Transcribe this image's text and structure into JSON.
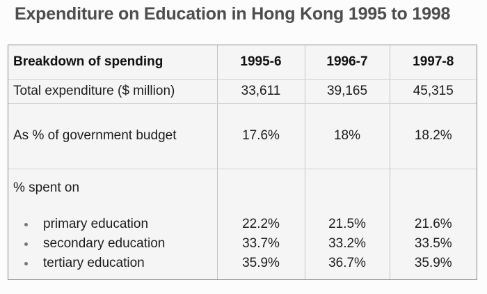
{
  "page": {
    "title": "Expenditure on Education in Hong Kong 1995 to 1998"
  },
  "colors": {
    "title_text": "#4d4d4f",
    "table_text": "#1c1c1c",
    "cell_background": "#f5f5f5",
    "outer_border": "#8a8a8a",
    "inner_grid": "#c3c3c3"
  },
  "chart_data": {
    "type": "table",
    "title": "Expenditure on Education in Hong Kong 1995 to 1998",
    "columns": [
      "Breakdown of spending",
      "1995-6",
      "1996-7",
      "1997-8"
    ],
    "rows": [
      {
        "label": "Total expenditure ($ million)",
        "values": [
          "33,611",
          "39,165",
          "45,315"
        ]
      },
      {
        "label": "As % of government budget",
        "values": [
          "17.6%",
          "18%",
          "18.2%"
        ]
      }
    ],
    "breakdown": {
      "label": "% spent on",
      "items": [
        {
          "label": "primary education",
          "values": [
            "22.2%",
            "21.5%",
            "21.6%"
          ]
        },
        {
          "label": "secondary education",
          "values": [
            "33.7%",
            "33.2%",
            "33.5%"
          ]
        },
        {
          "label": "tertiary education",
          "values": [
            "35.9%",
            "36.7%",
            "35.9%"
          ]
        }
      ]
    }
  }
}
